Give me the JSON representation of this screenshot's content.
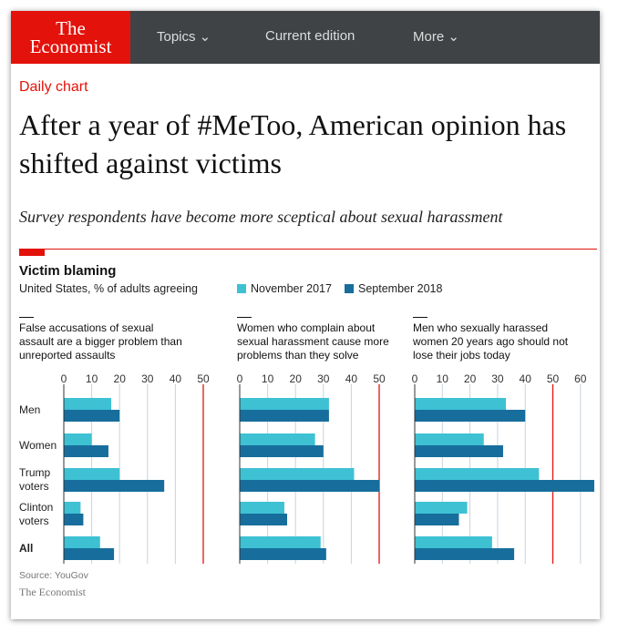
{
  "nav": {
    "logo": "The Economist",
    "items": [
      "Topics ⌄",
      "Current edition",
      "More ⌄"
    ]
  },
  "article": {
    "kicker": "Daily chart",
    "title": "After a year of #MeToo, American opinion has shifted against victims",
    "subtitle": "Survey respondents have become more sceptical about sexual harassment"
  },
  "chart_data": [
    {
      "type": "bar",
      "orientation": "horizontal",
      "title": "False accusations of sexual assault are a bigger problem than unreported assaults",
      "categories": [
        "Men",
        "Women",
        "Trump voters",
        "Clinton voters",
        "All"
      ],
      "xlim": [
        0,
        50
      ],
      "ticks": [
        0,
        10,
        20,
        30,
        40,
        50
      ],
      "reference_line": 50,
      "series": [
        {
          "name": "November 2017",
          "values": [
            17,
            10,
            20,
            6,
            13
          ]
        },
        {
          "name": "September 2018",
          "values": [
            20,
            16,
            36,
            7,
            18
          ]
        }
      ]
    },
    {
      "type": "bar",
      "orientation": "horizontal",
      "title": "Women who complain about sexual harassment cause more problems than they solve",
      "categories": [
        "Men",
        "Women",
        "Trump voters",
        "Clinton voters",
        "All"
      ],
      "xlim": [
        0,
        50
      ],
      "ticks": [
        0,
        10,
        20,
        30,
        40,
        50
      ],
      "reference_line": 50,
      "series": [
        {
          "name": "November 2017",
          "values": [
            32,
            27,
            41,
            16,
            29
          ]
        },
        {
          "name": "September 2018",
          "values": [
            32,
            30,
            50,
            17,
            31
          ]
        }
      ]
    },
    {
      "type": "bar",
      "orientation": "horizontal",
      "title": "Men who sexually harassed women 20 years ago should not lose their jobs today",
      "categories": [
        "Men",
        "Women",
        "Trump voters",
        "Clinton voters",
        "All"
      ],
      "xlim": [
        0,
        65
      ],
      "ticks": [
        0,
        10,
        20,
        30,
        40,
        50,
        60
      ],
      "reference_line": 50,
      "series": [
        {
          "name": "November 2017",
          "values": [
            33,
            25,
            45,
            19,
            28
          ]
        },
        {
          "name": "September 2018",
          "values": [
            40,
            32,
            65,
            16,
            36
          ]
        }
      ]
    }
  ],
  "chart": {
    "title": "Victim blaming",
    "subtitle": "United States, % of adults agreeing",
    "legend": [
      "November 2017",
      "September 2018"
    ],
    "row_labels": [
      "Men",
      "Women",
      "Trump\nvoters",
      "Clinton\nvoters",
      "All"
    ],
    "source": "Source: YouGov",
    "brand": "The Economist"
  },
  "colors": {
    "nov2017": "#3ec1d3",
    "sep2018": "#176e9c",
    "reference": "#e3120b",
    "grid": "#c8d3dc"
  }
}
